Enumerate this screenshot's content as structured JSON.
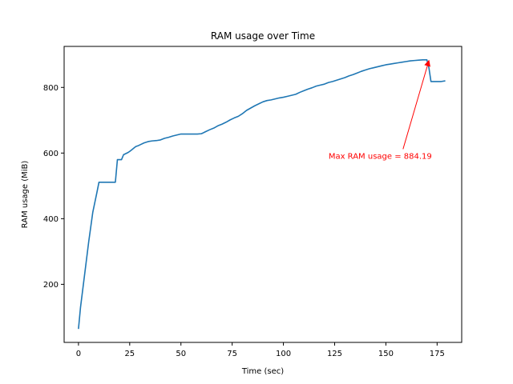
{
  "chart_data": {
    "type": "line",
    "title": "RAM usage over Time",
    "xlabel": "Time (sec)",
    "ylabel": "RAM usage (MiB)",
    "xlim": [
      -7,
      187
    ],
    "ylim": [
      23,
      925
    ],
    "xticks": [
      0,
      25,
      50,
      75,
      100,
      125,
      150,
      175
    ],
    "yticks": [
      200,
      400,
      600,
      800
    ],
    "grid": false,
    "line_color": "#1f77b4",
    "annotation_color": "#ff0000",
    "series": [
      {
        "x": [
          0,
          1,
          3,
          5,
          7,
          9,
          10,
          12,
          14,
          16,
          18,
          19,
          20,
          21,
          22,
          23,
          24,
          25,
          26,
          27,
          28,
          29,
          30,
          32,
          34,
          36,
          38,
          40,
          42,
          44,
          46,
          48,
          50,
          52,
          54,
          56,
          58,
          60,
          62,
          64,
          66,
          68,
          70,
          72,
          74,
          76,
          78,
          80,
          82,
          84,
          86,
          88,
          90,
          92,
          94,
          96,
          98,
          100,
          102,
          104,
          106,
          108,
          110,
          112,
          114,
          116,
          118,
          120,
          122,
          124,
          126,
          128,
          130,
          132,
          134,
          136,
          138,
          140,
          142,
          144,
          146,
          148,
          150,
          152,
          154,
          156,
          158,
          160,
          162,
          164,
          166,
          168,
          170,
          171,
          172,
          173,
          175,
          177,
          179
        ],
        "values": [
          64,
          130,
          230,
          330,
          420,
          480,
          511,
          511,
          511,
          511,
          511,
          580,
          580,
          580,
          595,
          598,
          601,
          605,
          610,
          615,
          620,
          622,
          625,
          631,
          635,
          637,
          638,
          640,
          645,
          648,
          652,
          655,
          658,
          658,
          658,
          658,
          658,
          659,
          665,
          671,
          676,
          683,
          688,
          694,
          701,
          707,
          712,
          720,
          730,
          737,
          744,
          750,
          756,
          760,
          762,
          765,
          768,
          770,
          773,
          776,
          779,
          785,
          790,
          795,
          799,
          804,
          807,
          810,
          815,
          818,
          822,
          826,
          830,
          835,
          839,
          844,
          849,
          853,
          857,
          860,
          863,
          866,
          869,
          871,
          873,
          875,
          877,
          879,
          881,
          882,
          883,
          884,
          884.19,
          860,
          818,
          818,
          818,
          818,
          820
        ]
      }
    ],
    "annotation": {
      "text": "Max RAM usage = 884.19",
      "text_x": 122,
      "text_y": 590,
      "arrow_x": 171,
      "arrow_y": 884.19
    }
  }
}
